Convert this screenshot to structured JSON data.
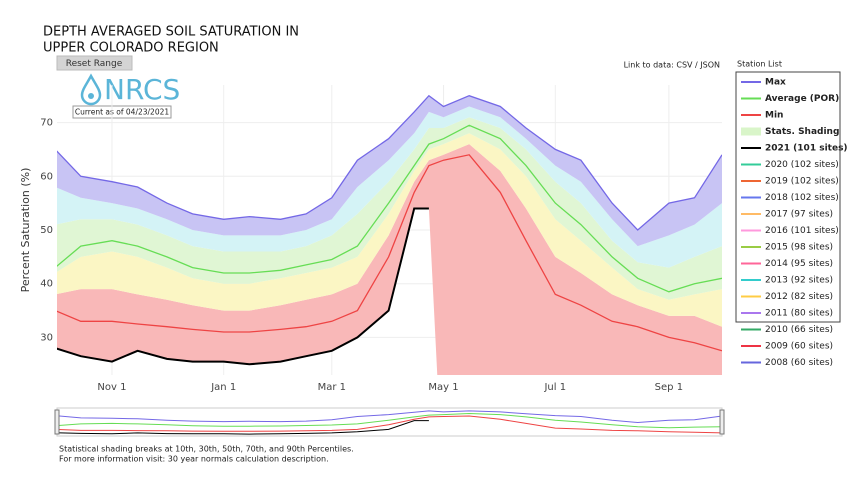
{
  "chart_data": {
    "type": "line",
    "title": [
      "DEPTH AVERAGED SOIL SATURATION IN",
      "UPPER COLORADO REGION"
    ],
    "y_label": "Percent Saturation (%)",
    "x": [
      "Oct 1",
      "Oct 15",
      "Nov 1",
      "Nov 15",
      "Dec 1",
      "Dec 15",
      "Jan 1",
      "Jan 15",
      "Feb 1",
      "Feb 15",
      "Mar 1",
      "Mar 15",
      "Apr 1",
      "Apr 15",
      "Apr 23",
      "May 1",
      "May 15",
      "Jun 1",
      "Jun 15",
      "Jul 1",
      "Jul 15",
      "Aug 1",
      "Aug 15",
      "Sep 1",
      "Sep 15",
      "Sep 30"
    ],
    "xlim": [
      "Oct 2",
      "Sep 30"
    ],
    "xticks": [
      "Nov 1",
      "Jan 1",
      "Mar 1",
      "May 1",
      "Jul 1",
      "Sep 1"
    ],
    "ylim": [
      23,
      77
    ],
    "yticks": [
      30,
      40,
      50,
      60,
      70
    ],
    "grid": true,
    "legend_title": "Station List",
    "series": [
      {
        "name": "Max",
        "color": "#7468e6",
        "values": [
          65,
          60,
          59,
          58,
          55,
          53,
          52,
          52.5,
          52,
          53,
          56,
          63,
          67,
          72,
          75,
          73,
          75,
          73,
          69,
          65,
          63,
          55,
          50,
          55,
          56,
          64
        ]
      },
      {
        "name": "Average (POR)",
        "color": "#66dd55",
        "values": [
          43,
          47,
          48,
          47,
          45,
          43,
          42,
          42,
          42.5,
          43.5,
          44.5,
          47,
          55,
          62,
          66,
          67,
          69.5,
          67,
          62,
          55,
          51,
          45,
          41,
          38.5,
          40,
          41
        ]
      },
      {
        "name": "Min",
        "color": "#ee4444",
        "values": [
          35,
          33,
          33,
          32.5,
          32,
          31.5,
          31,
          31,
          31.5,
          32,
          33,
          35,
          45,
          57,
          62,
          63,
          64,
          57,
          48,
          38,
          36,
          33,
          32,
          30,
          29,
          27.5
        ]
      },
      {
        "name": "Stats. Shading",
        "color": "#d9f5c9",
        "percentiles": [
          [
            38,
            39,
            39,
            38,
            37,
            36,
            35,
            35,
            36,
            37,
            38,
            40,
            49,
            59,
            63,
            64,
            66,
            61,
            54,
            45,
            42,
            38,
            36,
            34,
            34,
            32
          ],
          [
            42,
            45,
            46,
            45,
            43,
            41,
            40,
            40,
            41,
            42,
            43,
            45,
            53,
            61,
            65,
            66,
            68,
            65,
            60,
            52,
            48,
            43,
            39,
            37,
            38,
            39
          ],
          [
            51,
            52,
            52,
            51,
            49,
            47,
            46,
            46,
            46,
            47,
            49,
            53,
            59,
            65,
            69,
            69,
            71,
            69,
            65,
            59,
            55,
            48,
            44,
            43,
            45,
            47
          ],
          [
            58,
            56,
            55,
            54,
            52,
            50,
            49,
            49,
            49,
            50,
            52,
            58,
            63,
            68,
            72,
            71,
            73,
            71,
            67,
            62,
            59,
            52,
            47,
            49,
            51,
            55
          ]
        ],
        "band_colors": [
          "#f9b8b8",
          "#fbf6c4",
          "#e0f6d4",
          "#d4f3f6",
          "#c8c4f4"
        ]
      },
      {
        "name": "2021 (101 sites)",
        "color": "#000000",
        "values": [
          28,
          26.5,
          25.5,
          27.5,
          26,
          25.5,
          25.5,
          25,
          25.5,
          26.5,
          27.5,
          30,
          35,
          54,
          54,
          null,
          null,
          null,
          null,
          null,
          null,
          null,
          null,
          null,
          null,
          null
        ]
      },
      {
        "name": "2020 (102 sites)",
        "color": "#33cc99"
      },
      {
        "name": "2019 (102 sites)",
        "color": "#ee6633"
      },
      {
        "name": "2018 (102 sites)",
        "color": "#6677ee"
      },
      {
        "name": "2017 (97 sites)",
        "color": "#ffbb66"
      },
      {
        "name": "2016 (101 sites)",
        "color": "#ff99dd"
      },
      {
        "name": "2015 (98 sites)",
        "color": "#99cc44"
      },
      {
        "name": "2014 (95 sites)",
        "color": "#ff6699"
      },
      {
        "name": "2013 (92 sites)",
        "color": "#33cccc"
      },
      {
        "name": "2012 (82 sites)",
        "color": "#ffcc44"
      },
      {
        "name": "2011 (80 sites)",
        "color": "#aa77ee"
      },
      {
        "name": "2010 (66 sites)",
        "color": "#33aa66"
      },
      {
        "name": "2009 (60 sites)",
        "color": "#ee3344"
      },
      {
        "name": "2008 (60 sites)",
        "color": "#6666dd"
      }
    ]
  },
  "controls": {
    "reset": "Reset Range",
    "links": "Link to data: CSV / JSON"
  },
  "logo": {
    "text": "NRCS",
    "date": "Current as of 04/23/2021"
  },
  "notes": [
    "Statistical shading breaks at 10th, 30th, 50th, 70th, and 90th Percentiles.",
    "For more information visit: 30 year normals calculation description."
  ]
}
